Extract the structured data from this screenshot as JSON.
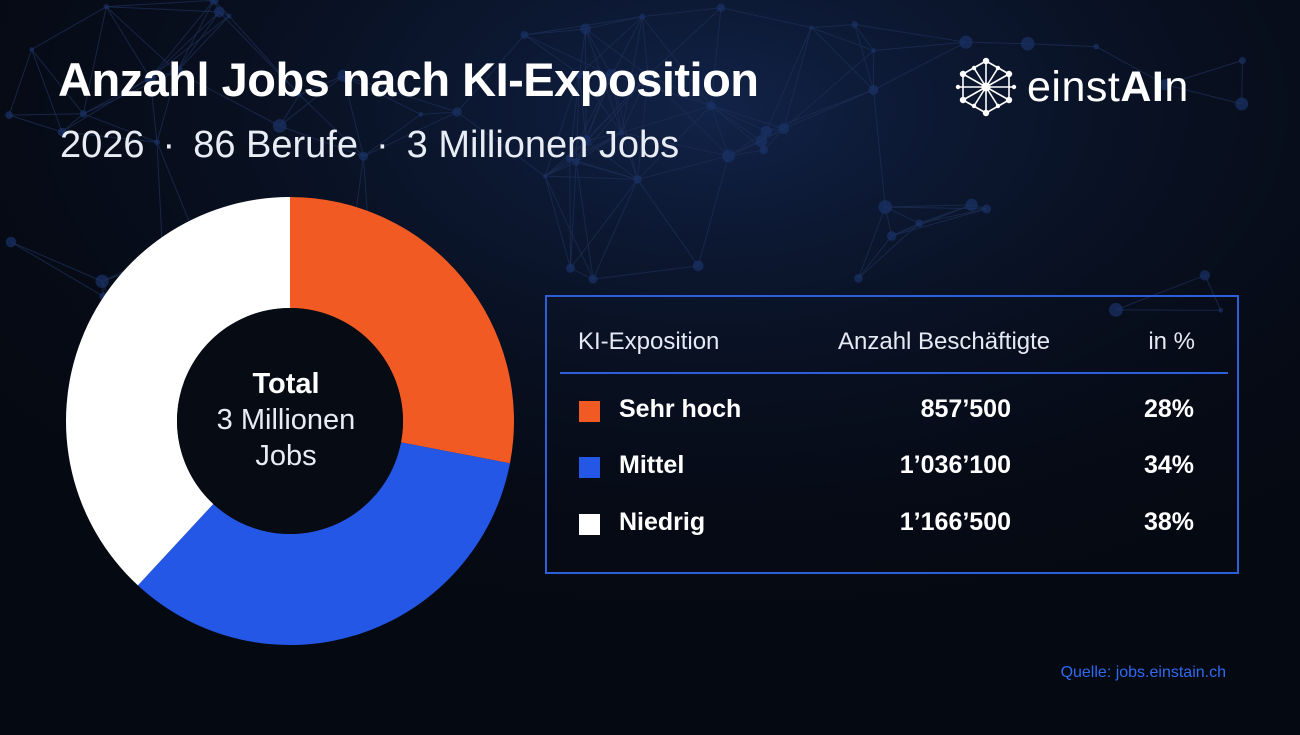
{
  "title": "Anzahl Jobs nach KI-Exposition",
  "subtitle": {
    "year": "2026",
    "professions": "86 Berufe",
    "jobs": "3 Millionen Jobs",
    "separator": "·"
  },
  "logo": {
    "icon": "network-icon",
    "text_prefix": "einst",
    "text_bold": "AI",
    "text_suffix": "n"
  },
  "center": {
    "total_label": "Total",
    "line1": "3 Millionen",
    "line2": "Jobs"
  },
  "table": {
    "headers": [
      "KI-Exposition",
      "Anzahl Beschäftigte",
      "in %"
    ],
    "rows": [
      {
        "label": "Sehr hoch",
        "value": "857’500",
        "percent": "28%",
        "color": "#f25a24"
      },
      {
        "label": "Mittel",
        "value": "1’036’100",
        "percent": "34%",
        "color": "#2457e6"
      },
      {
        "label": "Niedrig",
        "value": "1’166’500",
        "percent": "38%",
        "color": "#ffffff"
      }
    ]
  },
  "source": "Quelle: jobs.einstain.ch",
  "colors": {
    "background": "#050912",
    "accent_border": "#2f5fd8",
    "network_lines": "#1c2c52"
  },
  "chart_data": {
    "type": "pie",
    "variant": "donut",
    "categories": [
      "Sehr hoch",
      "Mittel",
      "Niedrig"
    ],
    "values": [
      857500,
      1036100,
      1166500
    ],
    "percent": [
      28,
      34,
      38
    ],
    "colors": [
      "#f25a24",
      "#2457e6",
      "#ffffff"
    ],
    "start": "12 o'clock",
    "direction": "clockwise"
  }
}
